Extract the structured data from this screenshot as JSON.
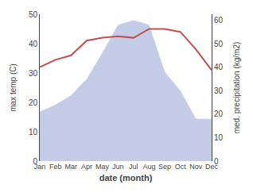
{
  "chart_data": {
    "type": "line",
    "xlabel": "date (month)",
    "ylabel": "max temp (C)",
    "y2label": "med. precipitation (kg/m2)",
    "categories": [
      "Jan",
      "Feb",
      "Mar",
      "Apr",
      "May",
      "Jun",
      "Jul",
      "Aug",
      "Sep",
      "Oct",
      "Nov",
      "Dec"
    ],
    "series": [
      {
        "type": "area",
        "axis": "y2",
        "color": "#c5cce8",
        "values": [
          21,
          24,
          28,
          35,
          46,
          58,
          60,
          58,
          38,
          30,
          18,
          18
        ]
      },
      {
        "type": "line",
        "color": "#c0504d",
        "values": [
          32,
          34.5,
          36,
          41,
          42,
          42.5,
          42,
          45,
          45,
          44,
          38,
          31
        ]
      }
    ],
    "ylim": [
      0,
      50
    ],
    "yticks": [
      0,
      10,
      20,
      30,
      40,
      50
    ],
    "y2lim": [
      0,
      62.5
    ],
    "y2ticks": [
      0,
      10,
      20,
      30,
      40,
      50,
      60
    ],
    "grid": false
  }
}
